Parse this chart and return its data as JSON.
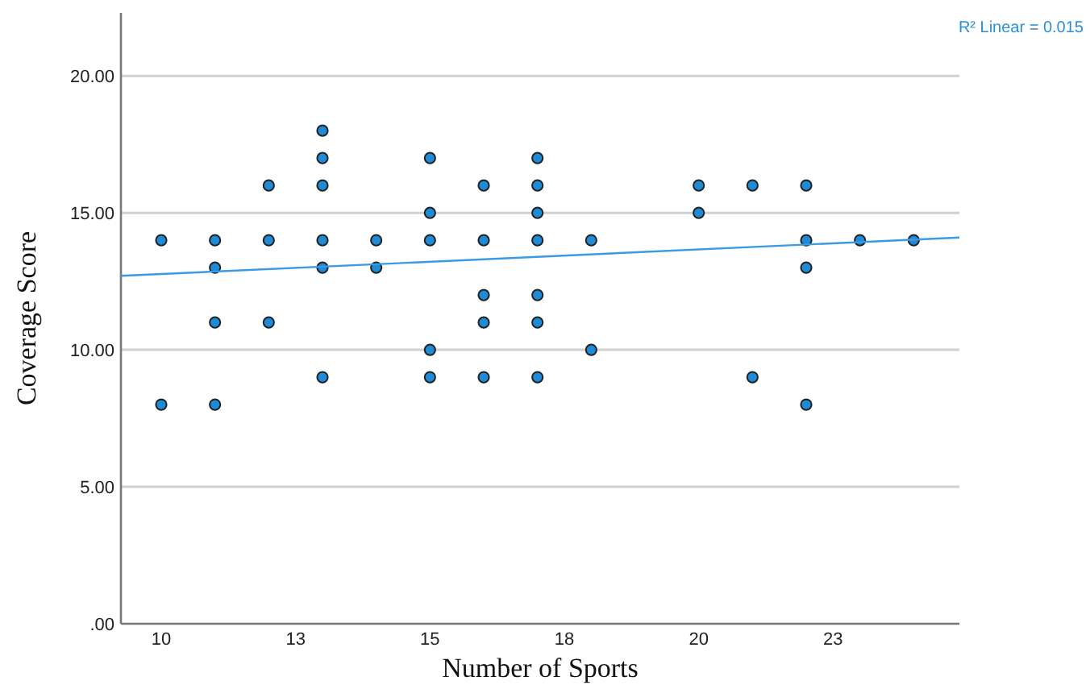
{
  "chart_data": {
    "type": "scatter",
    "xlabel": "Number of Sports",
    "ylabel": "Coverage Score",
    "annotations": [
      "R² Linear = 0.015"
    ],
    "xlim": [
      9.25,
      24.85
    ],
    "ylim": [
      0,
      22.3
    ],
    "xticks": [
      10,
      {
        "value": 12.5,
        "label": "13"
      },
      15,
      {
        "value": 17.5,
        "label": "18"
      },
      20,
      {
        "value": 22.5,
        "label": "23"
      }
    ],
    "yticks": [
      {
        "value": 0,
        "label": ".00"
      },
      {
        "value": 5,
        "label": "5.00"
      },
      {
        "value": 10,
        "label": "10.00"
      },
      {
        "value": 15,
        "label": "15.00"
      },
      {
        "value": 20,
        "label": "20.00"
      }
    ],
    "grid": "y",
    "series": [
      {
        "marker": "circle",
        "color": "#1f8ad6",
        "x": [
          10,
          10,
          11,
          11,
          11,
          11,
          12,
          12,
          12,
          13,
          13,
          13,
          13,
          13,
          13,
          14,
          14,
          15,
          15,
          15,
          15,
          15,
          16,
          16,
          16,
          16,
          16,
          17,
          17,
          17,
          17,
          17,
          17,
          17,
          18,
          18,
          20,
          20,
          21,
          21,
          22,
          22,
          22,
          22,
          23,
          24
        ],
        "values": [
          14,
          8,
          14,
          13,
          11,
          8,
          16,
          14,
          11,
          18,
          17,
          16,
          14,
          13,
          9,
          14,
          13,
          17,
          15,
          14,
          10,
          9,
          16,
          14,
          12,
          11,
          9,
          17,
          16,
          15,
          14,
          12,
          11,
          9,
          14,
          10,
          16,
          15,
          16,
          9,
          16,
          14,
          13,
          8,
          14,
          14
        ]
      },
      {
        "type": "line",
        "color": "#3a9be3",
        "x": [
          9.25,
          24.85
        ],
        "values": [
          12.7,
          14.1
        ],
        "line_style": "solid"
      }
    ]
  }
}
